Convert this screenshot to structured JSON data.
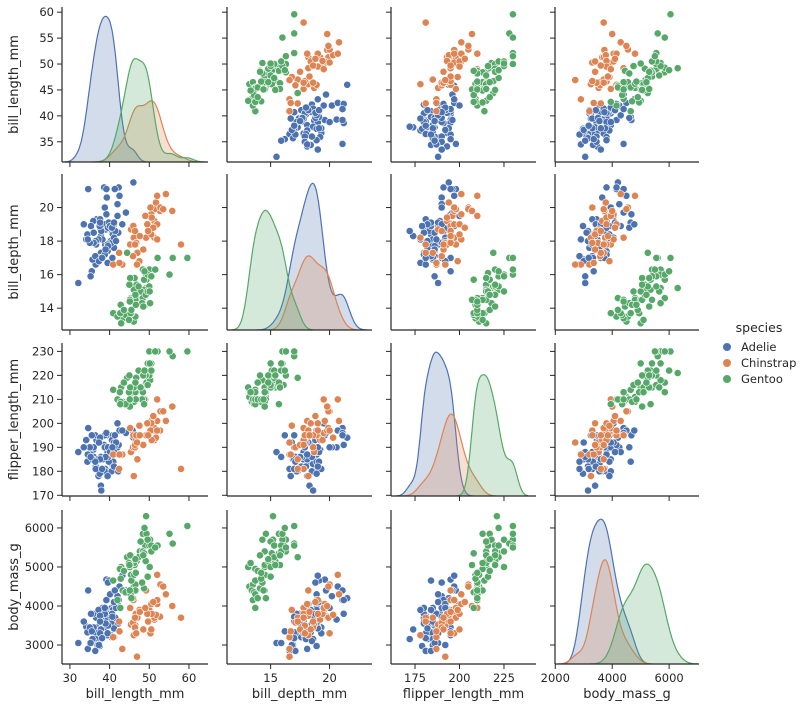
{
  "chart_data": {
    "type": "scatter",
    "kind": "pairplot",
    "diagonal": "kde",
    "grid": false,
    "legend": {
      "title": "species",
      "placement": "right"
    },
    "species": [
      {
        "name": "Adelie",
        "color": "#4c72b0"
      },
      {
        "name": "Chinstrap",
        "color": "#dd8452"
      },
      {
        "name": "Gentoo",
        "color": "#55a868"
      }
    ],
    "variables": [
      {
        "name": "bill_length_mm",
        "x_range": [
          28,
          64.8
        ],
        "y_range": [
          31.1,
          61
        ],
        "x_ticks": [
          30,
          40,
          50,
          60
        ],
        "y_ticks": [
          35,
          40,
          45,
          50,
          55,
          60
        ]
      },
      {
        "name": "bill_depth_mm",
        "x_range": [
          11.3,
          23.6
        ],
        "y_range": [
          12.7,
          22.0
        ],
        "x_ticks": [
          15,
          20
        ],
        "y_ticks": [
          14,
          16,
          18,
          20
        ]
      },
      {
        "name": "flipper_length_mm",
        "x_range": [
          161.5,
          243
        ],
        "y_range": [
          169.7,
          233.5
        ],
        "x_ticks": [
          175,
          200,
          225
        ],
        "y_ticks": [
          170,
          180,
          190,
          200,
          210,
          220,
          230
        ]
      },
      {
        "name": "body_mass_g",
        "x_range": [
          1990,
          7050
        ],
        "y_range": [
          2513,
          6460
        ],
        "x_ticks": [
          2000,
          4000,
          6000
        ],
        "y_ticks": [
          3000,
          4000,
          5000,
          6000
        ]
      }
    ],
    "points": {
      "Adelie": [
        [
          39.1,
          18.7,
          181,
          3750
        ],
        [
          39.5,
          17.4,
          186,
          3800
        ],
        [
          40.3,
          18.0,
          195,
          3250
        ],
        [
          36.7,
          19.3,
          193,
          3450
        ],
        [
          39.3,
          20.6,
          190,
          3650
        ],
        [
          38.9,
          17.8,
          181,
          3625
        ],
        [
          39.2,
          19.6,
          195,
          4675
        ],
        [
          34.1,
          18.1,
          193,
          3475
        ],
        [
          42.0,
          20.2,
          190,
          4250
        ],
        [
          37.8,
          17.1,
          186,
          3300
        ],
        [
          37.8,
          17.3,
          180,
          3700
        ],
        [
          41.1,
          17.6,
          182,
          3200
        ],
        [
          38.6,
          21.2,
          191,
          3800
        ],
        [
          34.6,
          21.1,
          198,
          4400
        ],
        [
          36.6,
          17.8,
          185,
          3700
        ],
        [
          38.7,
          19.0,
          195,
          3450
        ],
        [
          42.5,
          20.7,
          197,
          4500
        ],
        [
          34.4,
          18.4,
          184,
          3325
        ],
        [
          46.0,
          21.5,
          194,
          4200
        ],
        [
          37.8,
          18.3,
          174,
          3400
        ],
        [
          37.7,
          18.7,
          180,
          3600
        ],
        [
          35.9,
          19.2,
          189,
          3800
        ],
        [
          38.2,
          18.1,
          185,
          3950
        ],
        [
          38.8,
          17.2,
          180,
          3800
        ],
        [
          35.3,
          18.9,
          187,
          3800
        ],
        [
          40.6,
          18.6,
          183,
          3550
        ],
        [
          40.5,
          17.9,
          187,
          3200
        ],
        [
          37.9,
          18.6,
          172,
          3150
        ],
        [
          40.5,
          18.9,
          180,
          3950
        ],
        [
          39.5,
          16.7,
          178,
          3250
        ],
        [
          37.2,
          18.1,
          178,
          3900
        ],
        [
          39.5,
          17.8,
          188,
          3300
        ],
        [
          40.9,
          18.9,
          184,
          3900
        ],
        [
          36.4,
          17.0,
          195,
          3325
        ],
        [
          39.2,
          21.1,
          196,
          4150
        ],
        [
          38.8,
          20.0,
          190,
          3950
        ],
        [
          42.2,
          18.5,
          180,
          3550
        ],
        [
          37.6,
          19.3,
          181,
          3300
        ],
        [
          39.8,
          19.1,
          184,
          4650
        ],
        [
          36.5,
          18.0,
          182,
          3150
        ],
        [
          40.8,
          18.4,
          195,
          3900
        ],
        [
          36.0,
          18.5,
          186,
          3100
        ],
        [
          44.1,
          19.7,
          196,
          4400
        ],
        [
          37.0,
          16.9,
          185,
          3000
        ],
        [
          39.6,
          18.8,
          190,
          4600
        ],
        [
          41.1,
          19.0,
          182,
          3425
        ],
        [
          37.5,
          18.9,
          179,
          2975
        ],
        [
          36.0,
          17.9,
          190,
          3450
        ],
        [
          42.3,
          21.2,
          191,
          4150
        ],
        [
          39.6,
          17.7,
          186,
          3500
        ],
        [
          40.1,
          18.9,
          188,
          4300
        ],
        [
          35.0,
          17.9,
          190,
          3450
        ],
        [
          42.0,
          19.5,
          200,
          4050
        ],
        [
          34.5,
          18.1,
          187,
          2900
        ],
        [
          41.4,
          18.6,
          191,
          3700
        ],
        [
          39.0,
          17.5,
          186,
          3550
        ],
        [
          40.6,
          18.8,
          193,
          3800
        ],
        [
          36.5,
          16.6,
          181,
          2850
        ],
        [
          37.6,
          19.1,
          194,
          3750
        ],
        [
          35.7,
          16.9,
          185,
          3150
        ],
        [
          41.3,
          21.1,
          195,
          4400
        ],
        [
          37.6,
          17.0,
          185,
          3600
        ],
        [
          41.1,
          18.2,
          192,
          4050
        ],
        [
          36.4,
          17.1,
          184,
          2850
        ],
        [
          41.6,
          18.0,
          192,
          3950
        ],
        [
          35.5,
          16.2,
          195,
          3350
        ],
        [
          41.1,
          19.1,
          188,
          4100
        ],
        [
          32.1,
          15.5,
          188,
          3050
        ],
        [
          40.7,
          17.0,
          190,
          3725
        ],
        [
          37.3,
          16.8,
          192,
          3000
        ],
        [
          43.2,
          19.0,
          197,
          4775
        ],
        [
          35.2,
          15.9,
          186,
          3050
        ],
        [
          38.1,
          17.0,
          181,
          3175
        ],
        [
          45.8,
          18.9,
          197,
          4150
        ],
        [
          33.5,
          19.0,
          190,
          3600
        ]
      ],
      "Chinstrap": [
        [
          46.5,
          17.9,
          192,
          3500
        ],
        [
          50.0,
          19.5,
          196,
          3900
        ],
        [
          51.3,
          19.2,
          193,
          3650
        ],
        [
          45.4,
          18.7,
          188,
          3525
        ],
        [
          52.7,
          19.8,
          197,
          3725
        ],
        [
          45.2,
          17.8,
          198,
          3950
        ],
        [
          46.1,
          18.2,
          178,
          3250
        ],
        [
          51.3,
          18.2,
          197,
          3750
        ],
        [
          46.0,
          18.9,
          195,
          4150
        ],
        [
          51.3,
          19.9,
          198,
          3700
        ],
        [
          46.6,
          17.8,
          193,
          3800
        ],
        [
          51.7,
          20.3,
          194,
          3775
        ],
        [
          47.0,
          17.3,
          185,
          3700
        ],
        [
          52.0,
          18.1,
          201,
          4050
        ],
        [
          45.9,
          17.1,
          190,
          3575
        ],
        [
          50.5,
          19.6,
          201,
          4050
        ],
        [
          50.3,
          20.0,
          197,
          3300
        ],
        [
          58.0,
          17.8,
          181,
          3700
        ],
        [
          46.4,
          18.6,
          190,
          3450
        ],
        [
          49.2,
          18.2,
          195,
          4400
        ],
        [
          42.4,
          17.3,
          181,
          3600
        ],
        [
          48.5,
          17.5,
          191,
          3400
        ],
        [
          43.2,
          16.6,
          187,
          2900
        ],
        [
          50.6,
          19.4,
          193,
          3800
        ],
        [
          46.7,
          17.9,
          195,
          3300
        ],
        [
          52.0,
          19.0,
          197,
          4150
        ],
        [
          50.5,
          18.4,
          200,
          3400
        ],
        [
          49.5,
          19.0,
          200,
          3800
        ],
        [
          46.4,
          17.8,
          191,
          3700
        ],
        [
          52.8,
          20.0,
          205,
          4550
        ],
        [
          40.9,
          16.6,
          187,
          3200
        ],
        [
          54.2,
          20.8,
          201,
          4300
        ],
        [
          42.5,
          16.7,
          187,
          3350
        ],
        [
          51.0,
          18.8,
          203,
          4100
        ],
        [
          49.7,
          18.6,
          195,
          3600
        ],
        [
          47.5,
          16.8,
          199,
          3900
        ],
        [
          47.6,
          18.3,
          195,
          3850
        ],
        [
          52.0,
          20.7,
          210,
          4800
        ],
        [
          46.9,
          16.6,
          192,
          2700
        ],
        [
          53.5,
          19.9,
          205,
          4500
        ],
        [
          49.0,
          19.5,
          210,
          3950
        ],
        [
          55.8,
          19.8,
          207,
          4000
        ]
      ],
      "Gentoo": [
        [
          46.1,
          13.2,
          211,
          4500
        ],
        [
          50.0,
          16.3,
          230,
          5700
        ],
        [
          48.7,
          14.1,
          210,
          4450
        ],
        [
          50.0,
          15.2,
          218,
          5700
        ],
        [
          47.6,
          14.5,
          215,
          5400
        ],
        [
          46.5,
          13.5,
          210,
          4550
        ],
        [
          45.4,
          14.6,
          211,
          4800
        ],
        [
          46.7,
          15.3,
          219,
          5200
        ],
        [
          43.3,
          13.4,
          209,
          4400
        ],
        [
          46.8,
          15.4,
          215,
          5150
        ],
        [
          40.9,
          13.7,
          214,
          4650
        ],
        [
          49.0,
          16.1,
          216,
          5550
        ],
        [
          45.5,
          13.7,
          214,
          4650
        ],
        [
          48.4,
          14.6,
          213,
          5850
        ],
        [
          45.8,
          14.6,
          210,
          4200
        ],
        [
          49.3,
          15.7,
          217,
          5850
        ],
        [
          42.0,
          13.5,
          210,
          4150
        ],
        [
          49.2,
          15.2,
          221,
          6300
        ],
        [
          46.2,
          14.5,
          209,
          4800
        ],
        [
          48.7,
          15.1,
          222,
          5350
        ],
        [
          50.2,
          14.3,
          218,
          5700
        ],
        [
          45.1,
          14.5,
          215,
          5000
        ],
        [
          46.5,
          14.5,
          213,
          4400
        ],
        [
          46.3,
          15.8,
          215,
          5050
        ],
        [
          42.9,
          13.1,
          215,
          5000
        ],
        [
          46.1,
          15.1,
          215,
          5100
        ],
        [
          47.8,
          15.0,
          215,
          5650
        ],
        [
          48.2,
          14.3,
          210,
          4600
        ],
        [
          50.0,
          15.3,
          220,
          5550
        ],
        [
          47.3,
          15.3,
          222,
          5250
        ],
        [
          42.8,
          14.2,
          209,
          4700
        ],
        [
          45.1,
          14.5,
          207,
          5050
        ],
        [
          59.6,
          17.0,
          230,
          6050
        ],
        [
          49.1,
          14.8,
          220,
          5150
        ],
        [
          48.4,
          16.3,
          220,
          5400
        ],
        [
          42.6,
          13.7,
          213,
          4950
        ],
        [
          44.4,
          17.3,
          219,
          5250
        ],
        [
          44.0,
          13.6,
          208,
          4350
        ],
        [
          48.7,
          15.7,
          208,
          5350
        ],
        [
          42.7,
          13.7,
          208,
          3950
        ],
        [
          49.6,
          16.0,
          225,
          5700
        ],
        [
          45.3,
          13.7,
          210,
          4300
        ],
        [
          49.6,
          15.0,
          216,
          4750
        ],
        [
          50.5,
          15.9,
          222,
          5550
        ],
        [
          43.6,
          13.9,
          217,
          4900
        ],
        [
          45.5,
          13.9,
          210,
          4200
        ],
        [
          50.5,
          15.9,
          225,
          5400
        ],
        [
          44.9,
          13.3,
          213,
          5100
        ],
        [
          45.2,
          15.8,
          215,
          5300
        ],
        [
          46.6,
          14.2,
          210,
          4850
        ],
        [
          48.5,
          14.1,
          220,
          5300
        ],
        [
          45.1,
          14.4,
          210,
          4400
        ],
        [
          50.1,
          15.0,
          225,
          5000
        ],
        [
          46.5,
          14.8,
          217,
          5200
        ],
        [
          45.0,
          15.4,
          220,
          5050
        ],
        [
          55.9,
          17.0,
          228,
          5600
        ],
        [
          55.1,
          16.0,
          230,
          5850
        ],
        [
          48.8,
          16.2,
          222,
          6000
        ],
        [
          52.1,
          17.0,
          230,
          5550
        ],
        [
          51.5,
          16.3,
          230,
          5500
        ]
      ]
    }
  }
}
